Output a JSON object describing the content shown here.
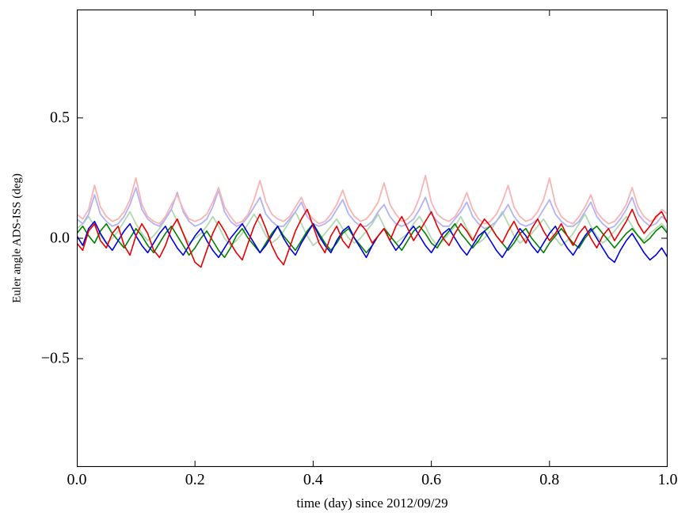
{
  "figure": {
    "background": "#ffffff",
    "frame_color": "#000000"
  },
  "chart_data": {
    "type": "line",
    "title": "",
    "xlabel": "time (day) since 2012/09/29",
    "ylabel": "Euler angle ADS-ISS (deg)",
    "xlim": [
      0.0,
      1.0
    ],
    "ylim": [
      -0.95,
      0.95
    ],
    "grid": false,
    "legend": "none",
    "x_ticks": [
      {
        "v": 0.0,
        "label": "0.0"
      },
      {
        "v": 0.2,
        "label": "0.2"
      },
      {
        "v": 0.4,
        "label": "0.4"
      },
      {
        "v": 0.6,
        "label": "0.6"
      },
      {
        "v": 0.8,
        "label": "0.8"
      },
      {
        "v": 1.0,
        "label": "1.0"
      }
    ],
    "y_ticks": [
      {
        "v": 0.5,
        "label": "0.5"
      },
      {
        "v": 0.0,
        "label": "0.0"
      },
      {
        "v": -0.5,
        "label": "−0.5"
      }
    ],
    "x_range": [
      0.0,
      1.0
    ],
    "series": [
      {
        "name": "light-green",
        "color": "#b2d8b2",
        "width": 1.8,
        "values": [
          0.04,
          0.06,
          0.09,
          0.05,
          0.01,
          -0.02,
          0.0,
          0.03,
          0.07,
          0.11,
          0.06,
          0.02,
          -0.01,
          0.01,
          0.04,
          0.08,
          0.12,
          0.07,
          0.02,
          -0.02,
          0.0,
          0.02,
          0.05,
          0.09,
          0.05,
          0.0,
          -0.03,
          -0.01,
          0.02,
          0.06,
          0.1,
          0.06,
          0.01,
          -0.02,
          0.0,
          0.03,
          0.07,
          0.11,
          0.06,
          0.01,
          -0.03,
          -0.01,
          0.02,
          0.05,
          0.08,
          0.04,
          0.0,
          -0.02,
          0.0,
          0.03,
          0.06,
          0.1,
          0.05,
          0.01,
          -0.02,
          0.0,
          0.02,
          0.06,
          0.09,
          0.05,
          0.0,
          -0.03,
          -0.01,
          0.02,
          0.05,
          0.09,
          0.04,
          0.0,
          -0.02,
          0.0,
          0.03,
          0.07,
          0.11,
          0.06,
          0.01,
          -0.02,
          0.0,
          0.02,
          0.05,
          0.08,
          0.04,
          0.0,
          -0.03,
          -0.01,
          0.02,
          0.06,
          0.1,
          0.05,
          0.01,
          -0.02,
          0.0,
          0.03,
          0.06,
          0.09,
          0.05,
          0.01,
          -0.01,
          0.02,
          0.04,
          0.06,
          0.03
        ]
      },
      {
        "name": "light-blue",
        "color": "#b2b2f5",
        "width": 1.8,
        "values": [
          0.08,
          0.06,
          0.1,
          0.18,
          0.1,
          0.07,
          0.05,
          0.06,
          0.09,
          0.14,
          0.21,
          0.12,
          0.08,
          0.06,
          0.05,
          0.08,
          0.12,
          0.19,
          0.11,
          0.07,
          0.05,
          0.06,
          0.08,
          0.13,
          0.2,
          0.11,
          0.07,
          0.05,
          0.06,
          0.09,
          0.13,
          0.17,
          0.1,
          0.07,
          0.05,
          0.05,
          0.08,
          0.11,
          0.15,
          0.09,
          0.06,
          0.05,
          0.06,
          0.08,
          0.12,
          0.16,
          0.1,
          0.07,
          0.05,
          0.05,
          0.07,
          0.11,
          0.14,
          0.09,
          0.06,
          0.05,
          0.06,
          0.08,
          0.12,
          0.17,
          0.1,
          0.07,
          0.05,
          0.05,
          0.08,
          0.11,
          0.15,
          0.09,
          0.06,
          0.04,
          0.05,
          0.07,
          0.1,
          0.14,
          0.09,
          0.06,
          0.05,
          0.06,
          0.08,
          0.12,
          0.16,
          0.1,
          0.07,
          0.05,
          0.05,
          0.07,
          0.11,
          0.15,
          0.09,
          0.06,
          0.04,
          0.05,
          0.08,
          0.12,
          0.17,
          0.1,
          0.07,
          0.05,
          0.06,
          0.09,
          0.07
        ]
      },
      {
        "name": "light-red",
        "color": "#f8b4b4",
        "width": 1.8,
        "values": [
          0.1,
          0.08,
          0.12,
          0.22,
          0.13,
          0.09,
          0.07,
          0.08,
          0.11,
          0.16,
          0.25,
          0.14,
          0.09,
          0.07,
          0.06,
          0.09,
          0.14,
          0.18,
          0.12,
          0.08,
          0.07,
          0.08,
          0.1,
          0.15,
          0.21,
          0.13,
          0.09,
          0.06,
          0.07,
          0.1,
          0.16,
          0.24,
          0.15,
          0.1,
          0.08,
          0.07,
          0.09,
          0.13,
          0.17,
          0.11,
          0.08,
          0.06,
          0.07,
          0.1,
          0.14,
          0.2,
          0.13,
          0.09,
          0.07,
          0.08,
          0.11,
          0.15,
          0.23,
          0.14,
          0.1,
          0.07,
          0.08,
          0.11,
          0.17,
          0.26,
          0.15,
          0.1,
          0.08,
          0.07,
          0.09,
          0.13,
          0.19,
          0.12,
          0.08,
          0.06,
          0.07,
          0.1,
          0.15,
          0.22,
          0.13,
          0.09,
          0.07,
          0.08,
          0.11,
          0.16,
          0.25,
          0.14,
          0.09,
          0.07,
          0.06,
          0.09,
          0.13,
          0.18,
          0.11,
          0.08,
          0.06,
          0.07,
          0.1,
          0.14,
          0.21,
          0.13,
          0.09,
          0.07,
          0.08,
          0.12,
          0.1
        ]
      },
      {
        "name": "green",
        "color": "#008000",
        "width": 1.6,
        "values": [
          0.02,
          0.05,
          0.01,
          -0.02,
          0.03,
          0.06,
          0.02,
          -0.01,
          -0.04,
          0.0,
          0.04,
          0.01,
          -0.03,
          -0.06,
          -0.02,
          0.02,
          0.05,
          0.01,
          -0.03,
          -0.07,
          -0.04,
          0.0,
          0.03,
          -0.01,
          -0.05,
          -0.08,
          -0.04,
          0.01,
          0.04,
          0.0,
          -0.03,
          -0.06,
          -0.02,
          0.02,
          0.05,
          0.01,
          -0.02,
          -0.05,
          -0.01,
          0.03,
          0.06,
          0.02,
          -0.02,
          -0.05,
          -0.02,
          0.02,
          0.04,
          0.0,
          -0.03,
          -0.06,
          -0.03,
          0.01,
          0.04,
          0.01,
          -0.02,
          -0.05,
          -0.01,
          0.03,
          0.05,
          0.02,
          -0.02,
          -0.04,
          0.0,
          0.03,
          0.06,
          0.02,
          -0.01,
          -0.04,
          -0.01,
          0.03,
          0.05,
          0.01,
          -0.02,
          -0.05,
          -0.02,
          0.02,
          0.04,
          0.0,
          -0.03,
          -0.06,
          -0.02,
          0.01,
          0.04,
          0.01,
          -0.02,
          -0.04,
          0.0,
          0.03,
          0.05,
          0.02,
          -0.01,
          -0.04,
          -0.01,
          0.02,
          0.04,
          0.01,
          -0.02,
          0.0,
          0.03,
          0.05,
          0.02
        ]
      },
      {
        "name": "blue",
        "color": "#0000e0",
        "width": 1.6,
        "values": [
          0.01,
          -0.03,
          0.04,
          0.07,
          0.02,
          -0.02,
          -0.05,
          -0.01,
          0.03,
          0.06,
          0.01,
          -0.03,
          -0.06,
          -0.02,
          0.02,
          0.05,
          0.0,
          -0.04,
          -0.07,
          -0.03,
          0.01,
          0.04,
          -0.01,
          -0.05,
          -0.08,
          -0.04,
          0.0,
          0.03,
          0.06,
          0.02,
          -0.02,
          -0.06,
          -0.03,
          0.01,
          0.05,
          0.0,
          -0.04,
          -0.07,
          -0.02,
          0.02,
          0.06,
          0.01,
          -0.03,
          -0.06,
          -0.01,
          0.03,
          0.05,
          0.0,
          -0.04,
          -0.08,
          -0.03,
          0.01,
          0.04,
          -0.01,
          -0.05,
          -0.02,
          0.02,
          0.05,
          0.01,
          -0.03,
          -0.06,
          -0.02,
          0.02,
          0.04,
          0.0,
          -0.04,
          -0.07,
          -0.03,
          0.01,
          0.03,
          -0.01,
          -0.05,
          -0.08,
          -0.04,
          0.0,
          0.04,
          0.01,
          -0.03,
          -0.06,
          -0.02,
          0.02,
          0.05,
          0.0,
          -0.04,
          -0.07,
          -0.03,
          0.01,
          0.04,
          0.0,
          -0.04,
          -0.08,
          -0.1,
          -0.05,
          -0.01,
          0.02,
          -0.02,
          -0.06,
          -0.09,
          -0.07,
          -0.04,
          -0.08
        ]
      },
      {
        "name": "red",
        "color": "#e60000",
        "width": 1.6,
        "values": [
          -0.02,
          -0.05,
          0.03,
          0.06,
          -0.01,
          -0.04,
          0.02,
          0.05,
          -0.03,
          -0.07,
          0.01,
          0.06,
          0.02,
          -0.05,
          -0.08,
          -0.03,
          0.04,
          0.08,
          0.02,
          -0.04,
          -0.1,
          -0.12,
          -0.05,
          0.02,
          0.07,
          0.03,
          -0.02,
          -0.06,
          -0.09,
          -0.02,
          0.05,
          0.1,
          0.04,
          -0.03,
          -0.08,
          -0.11,
          -0.04,
          0.03,
          0.08,
          0.12,
          0.05,
          -0.02,
          -0.06,
          0.01,
          0.05,
          -0.01,
          -0.04,
          0.02,
          0.06,
          0.03,
          -0.02,
          0.01,
          0.04,
          -0.01,
          0.05,
          0.09,
          0.04,
          -0.01,
          0.03,
          0.07,
          0.11,
          0.05,
          0.0,
          -0.03,
          0.02,
          0.06,
          0.03,
          -0.01,
          0.04,
          0.08,
          0.05,
          0.01,
          -0.02,
          0.03,
          0.07,
          0.02,
          -0.02,
          0.04,
          0.08,
          0.03,
          -0.01,
          0.02,
          0.06,
          0.01,
          -0.03,
          0.02,
          0.05,
          0.0,
          -0.04,
          0.01,
          0.04,
          -0.01,
          0.03,
          0.07,
          0.12,
          0.06,
          0.02,
          0.05,
          0.09,
          0.11,
          0.06
        ]
      }
    ]
  }
}
